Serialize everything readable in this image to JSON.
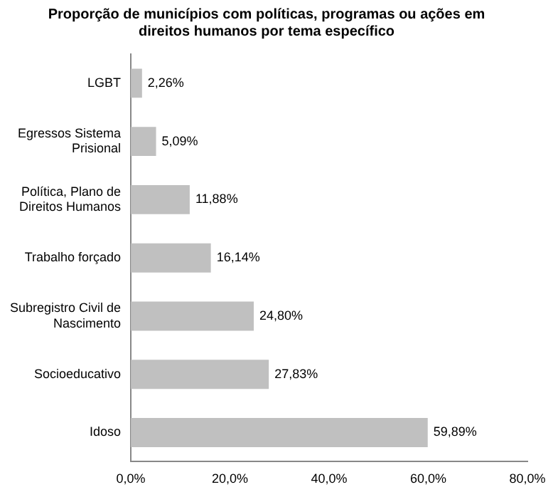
{
  "chart_data": {
    "type": "bar",
    "orientation": "horizontal",
    "title": "Proporção de municípios com políticas, programas ou ações em direitos humanos por tema específico",
    "categories": [
      "LGBT",
      "Egressos Sistema Prisional",
      "Política, Plano de Direitos Humanos",
      "Trabalho forçado",
      "Subregistro Civil de Nascimento",
      "Socioeducativo",
      "Idoso"
    ],
    "values": [
      2.26,
      5.09,
      11.88,
      16.14,
      24.8,
      27.83,
      59.89
    ],
    "value_labels": [
      "2,26%",
      "5,09%",
      "11,88%",
      "16,14%",
      "24,80%",
      "27,83%",
      "59,89%"
    ],
    "color": "#c0c0c0",
    "xlim": [
      0,
      80
    ],
    "xticks": [
      {
        "value": 0,
        "label": "0,0%"
      },
      {
        "value": 20,
        "label": "20,0%"
      },
      {
        "value": 40,
        "label": "40,0%"
      },
      {
        "value": 60,
        "label": "60,0%"
      },
      {
        "value": 80,
        "label": "80,0%"
      }
    ],
    "grid": false,
    "legend": false
  }
}
